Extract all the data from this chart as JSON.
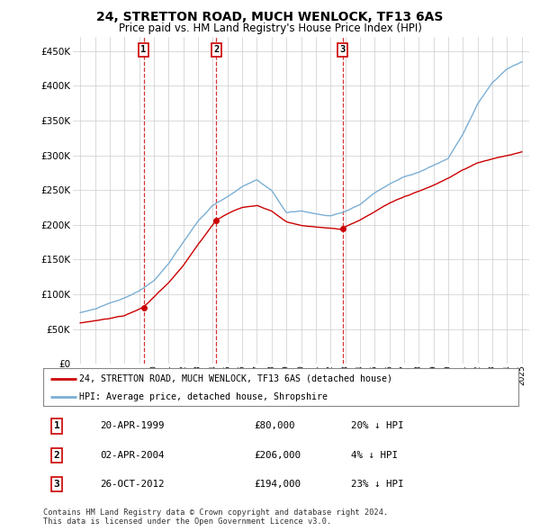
{
  "title": "24, STRETTON ROAD, MUCH WENLOCK, TF13 6AS",
  "subtitle": "Price paid vs. HM Land Registry's House Price Index (HPI)",
  "background_color": "#ffffff",
  "plot_bg_color": "#ffffff",
  "grid_color": "#cccccc",
  "hpi_color": "#7bafd4",
  "price_color": "#cc0000",
  "purchases": [
    {
      "date": 1999.3,
      "price": 80000,
      "label": "1"
    },
    {
      "date": 2004.25,
      "price": 206000,
      "label": "2"
    },
    {
      "date": 2012.82,
      "price": 194000,
      "label": "3"
    }
  ],
  "legend_line1": "24, STRETTON ROAD, MUCH WENLOCK, TF13 6AS (detached house)",
  "legend_line2": "HPI: Average price, detached house, Shropshire",
  "table_rows": [
    {
      "num": "1",
      "date": "20-APR-1999",
      "price": "£80,000",
      "hpi": "20% ↓ HPI"
    },
    {
      "num": "2",
      "date": "02-APR-2004",
      "price": "£206,000",
      "hpi": "4% ↓ HPI"
    },
    {
      "num": "3",
      "date": "26-OCT-2012",
      "price": "£194,000",
      "hpi": "23% ↓ HPI"
    }
  ],
  "footer": "Contains HM Land Registry data © Crown copyright and database right 2024.\nThis data is licensed under the Open Government Licence v3.0.",
  "ylim": [
    0,
    470000
  ],
  "yticks": [
    0,
    50000,
    100000,
    150000,
    200000,
    250000,
    300000,
    350000,
    400000,
    450000
  ],
  "xlim": [
    1994.5,
    2025.5
  ],
  "title_fontsize": 10,
  "subtitle_fontsize": 8.5
}
